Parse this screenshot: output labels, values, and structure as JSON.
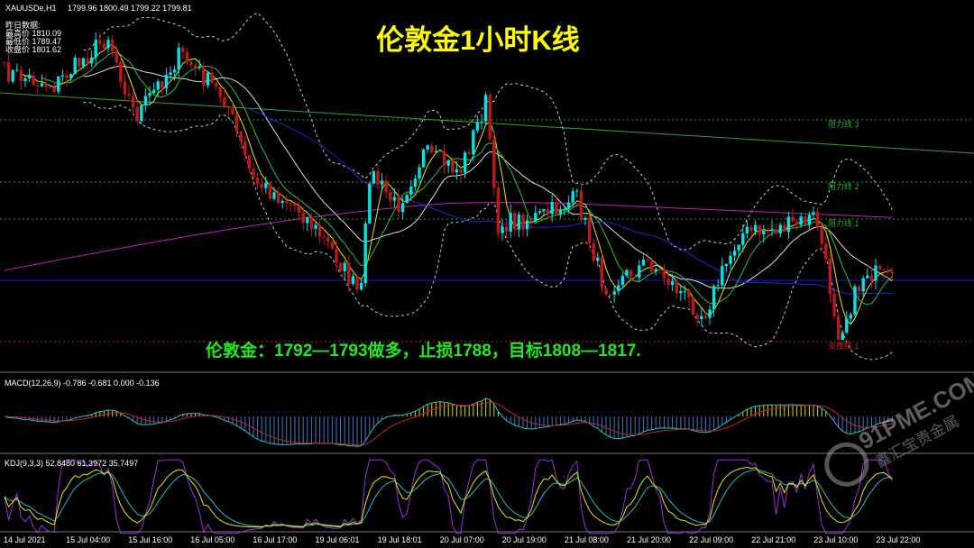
{
  "header": {
    "symbol": "XAUUSDe,H1",
    "ohlc": "1799.96 1800.49 1799.22 1799.81"
  },
  "info": {
    "title": "昨日数据:",
    "rows": [
      "最高价 1810.09",
      "最低价 1789.47",
      "收盘价 1801.62"
    ]
  },
  "title": "伦敦金1小时K线",
  "annotation": "伦敦金：1792—1793做多，止损1788，目标1808—1817.",
  "levels": [
    "阻力线 3",
    "阻力线 2",
    "阻力线 1",
    "支撑线 1"
  ],
  "macd": "MACD(12,26,9) -0.786 -0.681 0.000 -0.136",
  "kdj": "KDJ(9,3,3) 52.8480 61.3972 35.7497",
  "time_labels": [
    "14 Jul 2021",
    "15 Jul 04:00",
    "15 Jul 16:00",
    "16 Jul 05:00",
    "16 Jul 17:00",
    "19 Jul 06:01",
    "19 Jul 18:01",
    "20 Jul 07:00",
    "20 Jul 19:00",
    "21 Jul 08:00",
    "21 Jul 20:00",
    "22 Jul 09:00",
    "22 Jul 21:00",
    "23 Jul 10:00",
    "23 Jul 22:00"
  ],
  "watermark": {
    "site": "91PME.COM",
    "name": "鑫汇宝贵金属"
  }
}
